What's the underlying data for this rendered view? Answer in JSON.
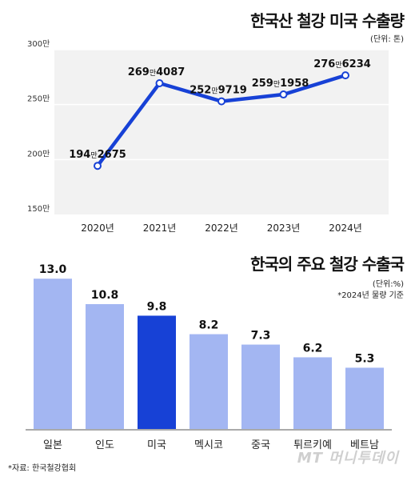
{
  "chart_data": [
    {
      "type": "line",
      "title": "한국산 철강 미국 수출량",
      "unit": "(단위: 톤)",
      "x": [
        "2020년",
        "2021년",
        "2022년",
        "2023년",
        "2024년"
      ],
      "series": [
        {
          "values": [
            1942675,
            2694087,
            2529719,
            2591958,
            2766234
          ]
        }
      ],
      "value_labels": [
        {
          "major": "194",
          "man": "만",
          "minor": "2675"
        },
        {
          "major": "269",
          "man": "만",
          "minor": "4087"
        },
        {
          "major": "252",
          "man": "만",
          "minor": "9719"
        },
        {
          "major": "259",
          "man": "만",
          "minor": "1958"
        },
        {
          "major": "276",
          "man": "만",
          "minor": "6234"
        }
      ],
      "yticks": [
        {
          "value": 3000000,
          "label": "300만"
        },
        {
          "value": 2500000,
          "label": "250만"
        },
        {
          "value": 2000000,
          "label": "200만"
        },
        {
          "value": 1500000,
          "label": "150만"
        }
      ],
      "ylim": [
        1500000,
        3000000
      ],
      "grid": true,
      "line_color": "#1741d6"
    },
    {
      "type": "bar",
      "title": "한국의 주요 철강 수출국",
      "unit": "(단위:%)",
      "note": "*2024년 물량 기준",
      "categories": [
        "일본",
        "인도",
        "미국",
        "멕시코",
        "중국",
        "튀르키예",
        "베트남"
      ],
      "values": [
        13.0,
        10.8,
        9.8,
        8.2,
        7.3,
        6.2,
        5.3
      ],
      "value_labels": [
        "13.0",
        "10.8",
        "9.8",
        "8.2",
        "7.3",
        "6.2",
        "5.3"
      ],
      "highlight": "미국",
      "bar_color": "#a3b6f2",
      "highlight_color": "#1741d6",
      "ylim": [
        0,
        13.5
      ]
    }
  ],
  "footer": {
    "source": "*자료: 한국철강협회",
    "watermark": "MT 머니투데이"
  }
}
